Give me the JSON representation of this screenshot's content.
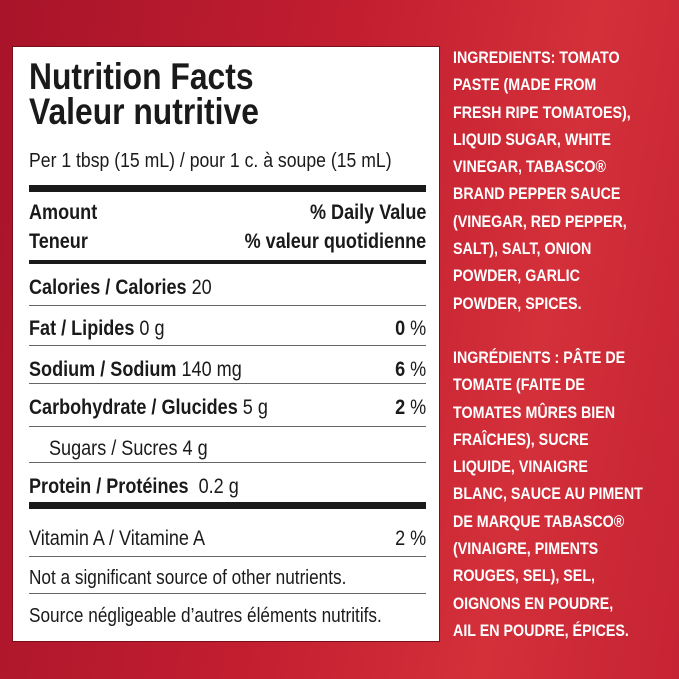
{
  "nutrition": {
    "title_en": "Nutrition Facts",
    "title_fr": "Valeur nutritive",
    "serving": "Per 1 tbsp (15 mL) / pour 1 c. à soupe (15 mL)",
    "amount_en": "Amount",
    "dv_en": "% Daily Value",
    "amount_fr": "Teneur",
    "dv_fr": "% valeur quotidienne",
    "rows": [
      {
        "label": "Calories / Calories",
        "amount": "20",
        "dv_num": "",
        "dv_pct": ""
      },
      {
        "label": "Fat / Lipides",
        "amount": "0 g",
        "dv_num": "0",
        "dv_pct": "%"
      },
      {
        "label": "Sodium / Sodium",
        "amount": "140 mg",
        "dv_num": "6",
        "dv_pct": "%"
      },
      {
        "label": "Carbohydrate / Glucides",
        "amount": "5 g",
        "dv_num": "2",
        "dv_pct": "%"
      },
      {
        "label": "Sugars / Sucres 4 g"
      },
      {
        "label": "Protein / Protéines",
        "amount": "0.2 g"
      }
    ],
    "vitamin": {
      "label": "Vitamin A / Vitamine A",
      "dv": "2 %"
    },
    "note_en": "Not a significant source of other nutrients.",
    "note_fr": "Source négligeable d’autres éléments nutritifs."
  },
  "ingredients": {
    "en": [
      "INGREDIENTS: TOMATO",
      "PASTE (MADE FROM",
      "FRESH RIPE TOMATOES),",
      "LIQUID SUGAR, WHITE",
      "VINEGAR, TABASCO®",
      "BRAND PEPPER SAUCE",
      "(VINEGAR, RED PEPPER,",
      "SALT), SALT, ONION",
      "POWDER, GARLIC",
      "POWDER, SPICES."
    ],
    "fr": [
      "INGRÉDIENTS : PÂTE DE",
      "TOMATE (FAITE DE",
      "TOMATES MÛRES BIEN",
      "FRAÎCHES), SUCRE",
      "LIQUIDE, VINAIGRE",
      "BLANC, SAUCE AU PIMENT",
      "DE MARQUE TABASCO®",
      "(VINAIGRE, PIMENTS",
      "ROUGES, SEL), SEL,",
      "OIGNONS EN POUDRE,",
      "AIL EN POUDRE, ÉPICES."
    ]
  },
  "colors": {
    "background": "#c21e30",
    "panel": "#ffffff",
    "text": "#1a1a1a"
  }
}
